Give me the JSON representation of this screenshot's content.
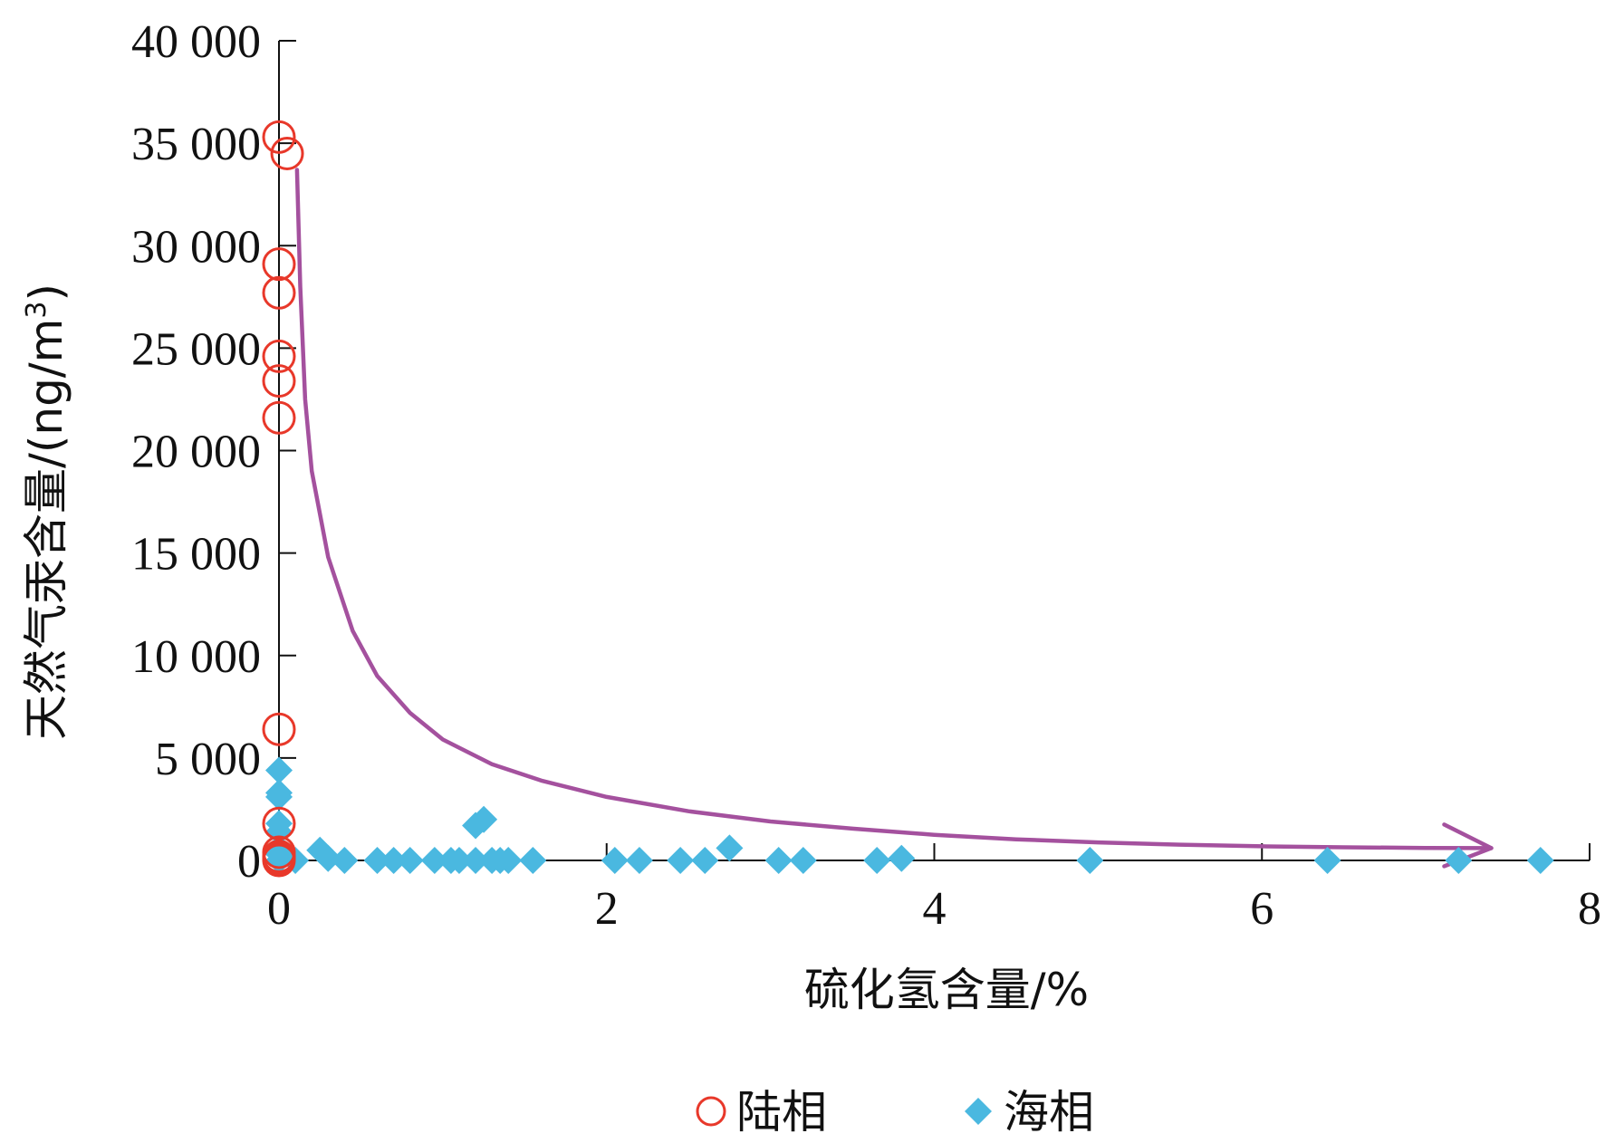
{
  "colors": {
    "terrestrial": "#e8382a",
    "marine": "#4ab8e0",
    "trend": "#a4519e",
    "axis": "#111111"
  },
  "chart_data": {
    "type": "scatter",
    "xlabel": "硫化氢含量/%",
    "ylabel": "天然气汞含量/(ng/m",
    "ylabel_sup": "3",
    "ylabel_close": ")",
    "xlim": [
      0,
      8
    ],
    "ylim": [
      0,
      40000
    ],
    "x_ticks": [
      0,
      2,
      4,
      6,
      8
    ],
    "x_tick_labels": [
      "0",
      "2",
      "4",
      "6",
      "8"
    ],
    "y_ticks": [
      0,
      5000,
      10000,
      15000,
      20000,
      25000,
      30000,
      35000,
      40000
    ],
    "y_tick_labels": [
      "0",
      "5 000",
      "10 000",
      "15 000",
      "20 000",
      "25 000",
      "30 000",
      "35 000",
      "40 000"
    ],
    "grid": false,
    "legend_position": "bottom-center",
    "series": [
      {
        "name": "陆相",
        "marker": "circle-open",
        "points": [
          [
            0.0,
            35300
          ],
          [
            0.05,
            34500
          ],
          [
            0.0,
            29100
          ],
          [
            0.0,
            27700
          ],
          [
            0.0,
            24600
          ],
          [
            0.0,
            23400
          ],
          [
            0.0,
            21600
          ],
          [
            0.0,
            6400
          ],
          [
            0.0,
            1800
          ],
          [
            0.0,
            400
          ],
          [
            0.0,
            200
          ],
          [
            0.0,
            100
          ],
          [
            0.0,
            0
          ]
        ]
      },
      {
        "name": "海相",
        "marker": "diamond-filled",
        "points": [
          [
            0.0,
            4400
          ],
          [
            0.0,
            3300
          ],
          [
            0.0,
            3100
          ],
          [
            0.0,
            1800
          ],
          [
            0.0,
            1400
          ],
          [
            0.0,
            600
          ],
          [
            0.0,
            300
          ],
          [
            0.0,
            0
          ],
          [
            0.1,
            0
          ],
          [
            0.25,
            500
          ],
          [
            0.3,
            100
          ],
          [
            0.4,
            0
          ],
          [
            0.6,
            0
          ],
          [
            0.7,
            0
          ],
          [
            0.8,
            0
          ],
          [
            0.95,
            0
          ],
          [
            1.05,
            0
          ],
          [
            1.1,
            0
          ],
          [
            1.2,
            1700
          ],
          [
            1.25,
            2000
          ],
          [
            1.2,
            0
          ],
          [
            1.3,
            0
          ],
          [
            1.35,
            0
          ],
          [
            1.4,
            0
          ],
          [
            1.55,
            0
          ],
          [
            2.05,
            0
          ],
          [
            2.2,
            0
          ],
          [
            2.45,
            0
          ],
          [
            2.6,
            0
          ],
          [
            2.75,
            600
          ],
          [
            3.05,
            0
          ],
          [
            3.2,
            0
          ],
          [
            3.65,
            0
          ],
          [
            3.8,
            100
          ],
          [
            4.95,
            0
          ],
          [
            6.4,
            0
          ],
          [
            7.2,
            0
          ],
          [
            7.7,
            0
          ]
        ]
      }
    ],
    "trend_curve": {
      "arrow": true,
      "points": [
        [
          0.11,
          33700
        ],
        [
          0.13,
          28000
        ],
        [
          0.16,
          22500
        ],
        [
          0.2,
          19000
        ],
        [
          0.3,
          14800
        ],
        [
          0.45,
          11200
        ],
        [
          0.6,
          9000
        ],
        [
          0.8,
          7200
        ],
        [
          1.0,
          5900
        ],
        [
          1.3,
          4700
        ],
        [
          1.6,
          3900
        ],
        [
          2.0,
          3100
        ],
        [
          2.5,
          2400
        ],
        [
          3.0,
          1900
        ],
        [
          3.5,
          1550
        ],
        [
          4.0,
          1250
        ],
        [
          4.5,
          1030
        ],
        [
          5.0,
          880
        ],
        [
          5.5,
          770
        ],
        [
          6.0,
          690
        ],
        [
          6.5,
          640
        ],
        [
          7.0,
          610
        ],
        [
          7.4,
          600
        ]
      ]
    }
  }
}
